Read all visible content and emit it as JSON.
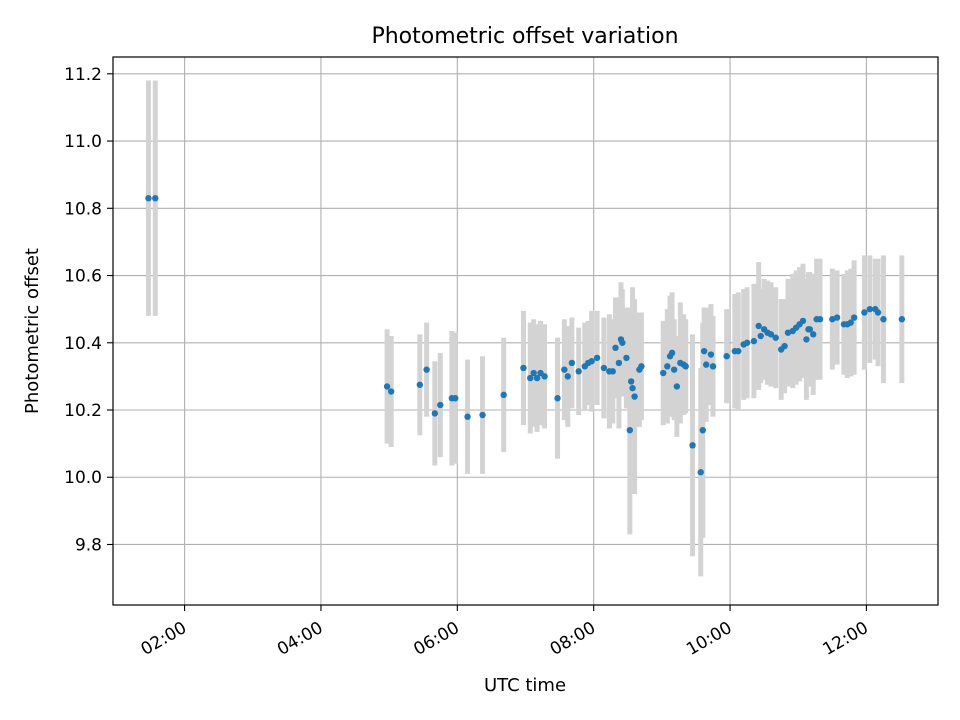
{
  "chart_data": {
    "type": "scatter",
    "title": "Photometric offset variation",
    "xlabel": "UTC time",
    "ylabel": "Photometric offset",
    "x_unit": "hours UTC",
    "xlim": [
      0.95,
      13.05
    ],
    "ylim": [
      9.62,
      11.25
    ],
    "x_ticks": [
      {
        "value": 2,
        "label": "02:00"
      },
      {
        "value": 4,
        "label": "04:00"
      },
      {
        "value": 6,
        "label": "06:00"
      },
      {
        "value": 8,
        "label": "08:00"
      },
      {
        "value": 10,
        "label": "10:00"
      },
      {
        "value": 12,
        "label": "12:00"
      }
    ],
    "y_ticks": [
      {
        "value": 9.8,
        "label": "9.8"
      },
      {
        "value": 10.0,
        "label": "10.0"
      },
      {
        "value": 10.2,
        "label": "10.2"
      },
      {
        "value": 10.4,
        "label": "10.4"
      },
      {
        "value": 10.6,
        "label": "10.6"
      },
      {
        "value": 10.8,
        "label": "10.8"
      },
      {
        "value": 11.0,
        "label": "11.0"
      },
      {
        "value": 11.2,
        "label": "11.2"
      }
    ],
    "grid": true,
    "colors": {
      "points": "#1f77b4",
      "errorbars": "#d3d3d3",
      "grid": "#b0b0b0",
      "axes": "#000000"
    },
    "series": [
      {
        "name": "offset",
        "x": [
          1.47,
          1.57,
          4.97,
          5.03,
          5.45,
          5.55,
          5.67,
          5.75,
          5.92,
          5.97,
          6.15,
          6.37,
          6.68,
          6.97,
          7.07,
          7.12,
          7.17,
          7.22,
          7.28,
          7.47,
          7.57,
          7.62,
          7.68,
          7.78,
          7.87,
          7.92,
          7.97,
          8.05,
          8.15,
          8.23,
          8.28,
          8.32,
          8.37,
          8.4,
          8.42,
          8.48,
          8.53,
          8.55,
          8.57,
          8.6,
          8.67,
          8.7,
          9.02,
          9.08,
          9.12,
          9.15,
          9.18,
          9.22,
          9.27,
          9.32,
          9.35,
          9.45,
          9.57,
          9.6,
          9.62,
          9.65,
          9.72,
          9.75,
          9.95,
          10.07,
          10.12,
          10.2,
          10.25,
          10.35,
          10.42,
          10.45,
          10.5,
          10.55,
          10.6,
          10.67,
          10.75,
          10.8,
          10.85,
          10.92,
          10.97,
          11.02,
          11.07,
          11.12,
          11.15,
          11.17,
          11.22,
          11.27,
          11.32,
          11.5,
          11.57,
          11.67,
          11.72,
          11.77,
          11.82,
          11.97,
          12.05,
          12.13,
          12.17,
          12.25,
          12.52
        ],
        "y": [
          10.83,
          10.83,
          10.27,
          10.255,
          10.275,
          10.32,
          10.19,
          10.215,
          10.235,
          10.235,
          10.18,
          10.185,
          10.245,
          10.325,
          10.295,
          10.31,
          10.295,
          10.31,
          10.3,
          10.235,
          10.32,
          10.3,
          10.34,
          10.315,
          10.33,
          10.34,
          10.345,
          10.355,
          10.325,
          10.315,
          10.315,
          10.385,
          10.34,
          10.41,
          10.4,
          10.355,
          10.14,
          10.285,
          10.265,
          10.24,
          10.32,
          10.33,
          10.31,
          10.33,
          10.36,
          10.37,
          10.32,
          10.27,
          10.34,
          10.335,
          10.33,
          10.095,
          10.015,
          10.14,
          10.375,
          10.335,
          10.365,
          10.33,
          10.36,
          10.375,
          10.375,
          10.395,
          10.4,
          10.405,
          10.45,
          10.42,
          10.44,
          10.43,
          10.425,
          10.415,
          10.38,
          10.39,
          10.43,
          10.435,
          10.445,
          10.455,
          10.465,
          10.41,
          10.44,
          10.44,
          10.425,
          10.47,
          10.47,
          10.47,
          10.475,
          10.455,
          10.455,
          10.46,
          10.475,
          10.49,
          10.5,
          10.5,
          10.49,
          10.47,
          10.47
        ],
        "err": [
          0.35,
          0.35,
          0.17,
          0.165,
          0.15,
          0.14,
          0.155,
          0.155,
          0.2,
          0.195,
          0.17,
          0.175,
          0.17,
          0.17,
          0.165,
          0.16,
          0.16,
          0.155,
          0.155,
          0.18,
          0.15,
          0.15,
          0.135,
          0.13,
          0.13,
          0.125,
          0.15,
          0.14,
          0.15,
          0.17,
          0.155,
          0.15,
          0.195,
          0.17,
          0.16,
          0.15,
          0.31,
          0.22,
          0.3,
          0.29,
          0.17,
          0.16,
          0.155,
          0.17,
          0.18,
          0.18,
          0.15,
          0.15,
          0.18,
          0.15,
          0.14,
          0.33,
          0.31,
          0.32,
          0.13,
          0.17,
          0.15,
          0.15,
          0.14,
          0.17,
          0.175,
          0.165,
          0.165,
          0.17,
          0.19,
          0.14,
          0.15,
          0.155,
          0.155,
          0.15,
          0.15,
          0.14,
          0.16,
          0.17,
          0.17,
          0.17,
          0.17,
          0.18,
          0.17,
          0.17,
          0.18,
          0.18,
          0.18,
          0.15,
          0.14,
          0.15,
          0.16,
          0.16,
          0.17,
          0.17,
          0.16,
          0.15,
          0.16,
          0.19,
          0.19
        ]
      }
    ]
  }
}
